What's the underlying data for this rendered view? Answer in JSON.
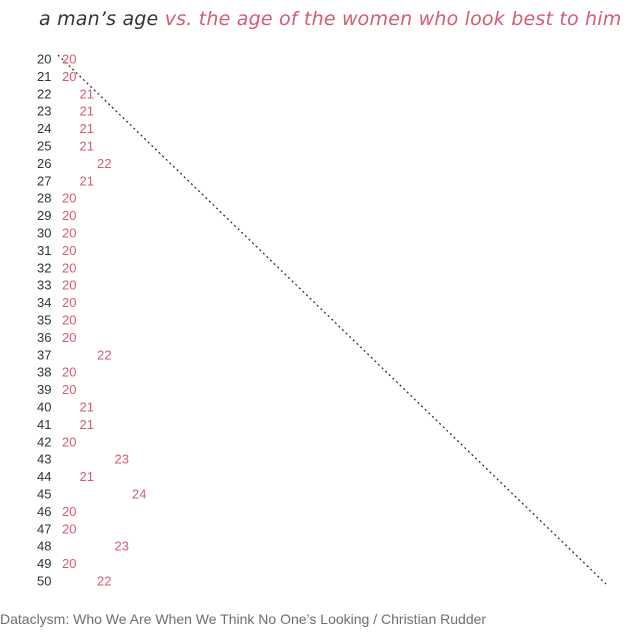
{
  "title": {
    "part_a": "a man’s age",
    "part_b": " vs. the age of the women who look best to him"
  },
  "source": "Dataclysm: Who We Are When We Think No One’s Looking / Christian Rudder",
  "colors": {
    "male_age": "#333333",
    "female_age": "#d65a72",
    "title_accent": "#d65a72",
    "diagonal": "#333333",
    "source": "#6e6e6e"
  },
  "chart_data": {
    "type": "scatter",
    "title": "a man’s age vs. the age of the women who look best to him",
    "xlabel": "",
    "ylabel": "",
    "x_range": [
      20,
      50
    ],
    "series": [
      {
        "name": "",
        "points": [
          {
            "man_age": 20,
            "woman_age": 20
          },
          {
            "man_age": 21,
            "woman_age": 20
          },
          {
            "man_age": 22,
            "woman_age": 21
          },
          {
            "man_age": 23,
            "woman_age": 21
          },
          {
            "man_age": 24,
            "woman_age": 21
          },
          {
            "man_age": 25,
            "woman_age": 21
          },
          {
            "man_age": 26,
            "woman_age": 22
          },
          {
            "man_age": 27,
            "woman_age": 21
          },
          {
            "man_age": 28,
            "woman_age": 20
          },
          {
            "man_age": 29,
            "woman_age": 20
          },
          {
            "man_age": 30,
            "woman_age": 20
          },
          {
            "man_age": 31,
            "woman_age": 20
          },
          {
            "man_age": 32,
            "woman_age": 20
          },
          {
            "man_age": 33,
            "woman_age": 20
          },
          {
            "man_age": 34,
            "woman_age": 20
          },
          {
            "man_age": 35,
            "woman_age": 20
          },
          {
            "man_age": 36,
            "woman_age": 20
          },
          {
            "man_age": 37,
            "woman_age": 22
          },
          {
            "man_age": 38,
            "woman_age": 20
          },
          {
            "man_age": 39,
            "woman_age": 20
          },
          {
            "man_age": 40,
            "woman_age": 21
          },
          {
            "man_age": 41,
            "woman_age": 21
          },
          {
            "man_age": 42,
            "woman_age": 20
          },
          {
            "man_age": 43,
            "woman_age": 23
          },
          {
            "man_age": 44,
            "woman_age": 21
          },
          {
            "man_age": 45,
            "woman_age": 24
          },
          {
            "man_age": 46,
            "woman_age": 20
          },
          {
            "man_age": 47,
            "woman_age": 20
          },
          {
            "man_age": 48,
            "woman_age": 23
          },
          {
            "man_age": 49,
            "woman_age": 20
          },
          {
            "man_age": 50,
            "woman_age": 22
          }
        ]
      }
    ],
    "reference_line": "y = x (dotted diagonal)"
  }
}
